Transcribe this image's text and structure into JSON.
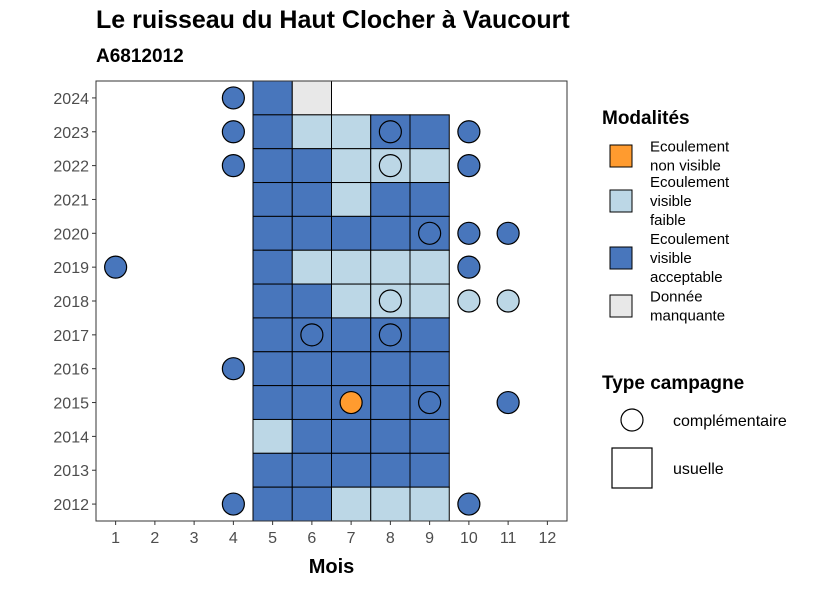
{
  "chart_data": {
    "type": "heatmap",
    "title": "Le ruisseau du Haut Clocher à Vaucourt",
    "subtitle": "A6812012",
    "xlabel": "Mois",
    "ylabel": "",
    "x_ticks": [
      "1",
      "2",
      "3",
      "4",
      "5",
      "6",
      "7",
      "8",
      "9",
      "10",
      "11",
      "12"
    ],
    "y_ticks": [
      "2012",
      "2013",
      "2014",
      "2015",
      "2016",
      "2017",
      "2018",
      "2019",
      "2020",
      "2021",
      "2022",
      "2023",
      "2024"
    ],
    "xlim": [
      0.5,
      12.5
    ],
    "ylim": [
      2011.5,
      2024.5
    ],
    "colors": {
      "non_visible": "#FF9B2F",
      "faible": "#BCD7E6",
      "acceptable": "#4876BC",
      "manquante": "#E8E8E8"
    },
    "legend_modalites": {
      "title": "Modalités",
      "items": [
        {
          "key": "non_visible",
          "lines": [
            "Ecoulement",
            "non visible"
          ]
        },
        {
          "key": "faible",
          "lines": [
            "Ecoulement",
            "visible",
            "faible"
          ]
        },
        {
          "key": "acceptable",
          "lines": [
            "Ecoulement",
            "visible",
            "acceptable"
          ]
        },
        {
          "key": "manquante",
          "lines": [
            "Donnée",
            "manquante"
          ]
        }
      ]
    },
    "legend_campagne": {
      "title": "Type campagne",
      "items": [
        {
          "shape": "circle",
          "label": "complémentaire"
        },
        {
          "shape": "square",
          "label": "usuelle"
        }
      ]
    },
    "usuelle": [
      {
        "year": 2024,
        "month": 5,
        "value": "acceptable"
      },
      {
        "year": 2024,
        "month": 6,
        "value": "manquante"
      },
      {
        "year": 2023,
        "month": 5,
        "value": "acceptable"
      },
      {
        "year": 2023,
        "month": 6,
        "value": "faible"
      },
      {
        "year": 2023,
        "month": 7,
        "value": "faible"
      },
      {
        "year": 2023,
        "month": 8,
        "value": "acceptable"
      },
      {
        "year": 2023,
        "month": 9,
        "value": "acceptable"
      },
      {
        "year": 2022,
        "month": 5,
        "value": "acceptable"
      },
      {
        "year": 2022,
        "month": 6,
        "value": "acceptable"
      },
      {
        "year": 2022,
        "month": 7,
        "value": "faible"
      },
      {
        "year": 2022,
        "month": 8,
        "value": "faible"
      },
      {
        "year": 2022,
        "month": 9,
        "value": "faible"
      },
      {
        "year": 2021,
        "month": 5,
        "value": "acceptable"
      },
      {
        "year": 2021,
        "month": 6,
        "value": "acceptable"
      },
      {
        "year": 2021,
        "month": 7,
        "value": "faible"
      },
      {
        "year": 2021,
        "month": 8,
        "value": "acceptable"
      },
      {
        "year": 2021,
        "month": 9,
        "value": "acceptable"
      },
      {
        "year": 2020,
        "month": 5,
        "value": "acceptable"
      },
      {
        "year": 2020,
        "month": 6,
        "value": "acceptable"
      },
      {
        "year": 2020,
        "month": 7,
        "value": "acceptable"
      },
      {
        "year": 2020,
        "month": 8,
        "value": "acceptable"
      },
      {
        "year": 2020,
        "month": 9,
        "value": "acceptable"
      },
      {
        "year": 2019,
        "month": 5,
        "value": "acceptable"
      },
      {
        "year": 2019,
        "month": 6,
        "value": "faible"
      },
      {
        "year": 2019,
        "month": 7,
        "value": "faible"
      },
      {
        "year": 2019,
        "month": 8,
        "value": "faible"
      },
      {
        "year": 2019,
        "month": 9,
        "value": "faible"
      },
      {
        "year": 2018,
        "month": 5,
        "value": "acceptable"
      },
      {
        "year": 2018,
        "month": 6,
        "value": "acceptable"
      },
      {
        "year": 2018,
        "month": 7,
        "value": "faible"
      },
      {
        "year": 2018,
        "month": 8,
        "value": "faible"
      },
      {
        "year": 2018,
        "month": 9,
        "value": "faible"
      },
      {
        "year": 2017,
        "month": 5,
        "value": "acceptable"
      },
      {
        "year": 2017,
        "month": 6,
        "value": "acceptable"
      },
      {
        "year": 2017,
        "month": 7,
        "value": "acceptable"
      },
      {
        "year": 2017,
        "month": 8,
        "value": "acceptable"
      },
      {
        "year": 2017,
        "month": 9,
        "value": "acceptable"
      },
      {
        "year": 2016,
        "month": 5,
        "value": "acceptable"
      },
      {
        "year": 2016,
        "month": 6,
        "value": "acceptable"
      },
      {
        "year": 2016,
        "month": 7,
        "value": "acceptable"
      },
      {
        "year": 2016,
        "month": 8,
        "value": "acceptable"
      },
      {
        "year": 2016,
        "month": 9,
        "value": "acceptable"
      },
      {
        "year": 2015,
        "month": 5,
        "value": "acceptable"
      },
      {
        "year": 2015,
        "month": 6,
        "value": "acceptable"
      },
      {
        "year": 2015,
        "month": 7,
        "value": "acceptable"
      },
      {
        "year": 2015,
        "month": 8,
        "value": "acceptable"
      },
      {
        "year": 2015,
        "month": 9,
        "value": "acceptable"
      },
      {
        "year": 2014,
        "month": 5,
        "value": "faible"
      },
      {
        "year": 2014,
        "month": 6,
        "value": "acceptable"
      },
      {
        "year": 2014,
        "month": 7,
        "value": "acceptable"
      },
      {
        "year": 2014,
        "month": 8,
        "value": "acceptable"
      },
      {
        "year": 2014,
        "month": 9,
        "value": "acceptable"
      },
      {
        "year": 2013,
        "month": 5,
        "value": "acceptable"
      },
      {
        "year": 2013,
        "month": 6,
        "value": "acceptable"
      },
      {
        "year": 2013,
        "month": 7,
        "value": "acceptable"
      },
      {
        "year": 2013,
        "month": 8,
        "value": "acceptable"
      },
      {
        "year": 2013,
        "month": 9,
        "value": "acceptable"
      },
      {
        "year": 2012,
        "month": 5,
        "value": "acceptable"
      },
      {
        "year": 2012,
        "month": 6,
        "value": "acceptable"
      },
      {
        "year": 2012,
        "month": 7,
        "value": "faible"
      },
      {
        "year": 2012,
        "month": 8,
        "value": "faible"
      },
      {
        "year": 2012,
        "month": 9,
        "value": "faible"
      }
    ],
    "complementaire": [
      {
        "year": 2024,
        "month": 4,
        "value": "acceptable"
      },
      {
        "year": 2023,
        "month": 4,
        "value": "acceptable"
      },
      {
        "year": 2023,
        "month": 8,
        "value": "acceptable"
      },
      {
        "year": 2023,
        "month": 10,
        "value": "acceptable"
      },
      {
        "year": 2022,
        "month": 4,
        "value": "acceptable"
      },
      {
        "year": 2022,
        "month": 8,
        "value": "faible"
      },
      {
        "year": 2022,
        "month": 10,
        "value": "acceptable"
      },
      {
        "year": 2020,
        "month": 9,
        "value": "acceptable"
      },
      {
        "year": 2020,
        "month": 10,
        "value": "acceptable"
      },
      {
        "year": 2020,
        "month": 11,
        "value": "acceptable"
      },
      {
        "year": 2019,
        "month": 1,
        "value": "acceptable"
      },
      {
        "year": 2019,
        "month": 10,
        "value": "acceptable"
      },
      {
        "year": 2018,
        "month": 8,
        "value": "faible"
      },
      {
        "year": 2018,
        "month": 10,
        "value": "faible"
      },
      {
        "year": 2018,
        "month": 11,
        "value": "faible"
      },
      {
        "year": 2017,
        "month": 6,
        "value": "acceptable"
      },
      {
        "year": 2017,
        "month": 8,
        "value": "acceptable"
      },
      {
        "year": 2016,
        "month": 4,
        "value": "acceptable"
      },
      {
        "year": 2015,
        "month": 7,
        "value": "non_visible"
      },
      {
        "year": 2015,
        "month": 9,
        "value": "acceptable"
      },
      {
        "year": 2015,
        "month": 11,
        "value": "acceptable"
      },
      {
        "year": 2012,
        "month": 4,
        "value": "acceptable"
      },
      {
        "year": 2012,
        "month": 10,
        "value": "acceptable"
      }
    ]
  }
}
